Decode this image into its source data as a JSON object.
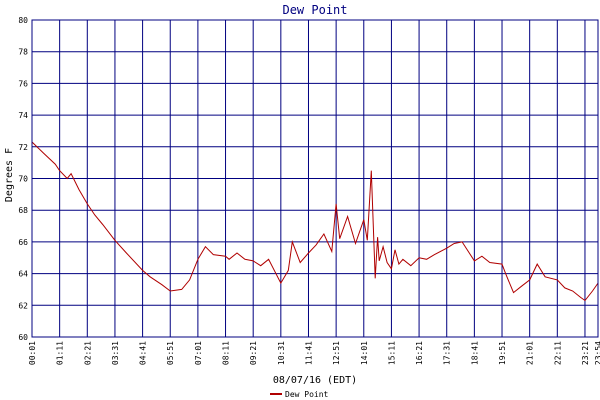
{
  "chart_data": {
    "type": "line",
    "title": "Dew Point",
    "ylabel": "Degrees F",
    "xlabel": "08/07/16 (EDT)",
    "ylim": [
      60,
      80
    ],
    "y_ticks": [
      "60",
      "62",
      "64",
      "66",
      "68",
      "70",
      "72",
      "74",
      "76",
      "78",
      "80"
    ],
    "x_ticks": [
      "00:01",
      "01:11",
      "02:21",
      "03:31",
      "04:41",
      "05:51",
      "07:01",
      "08:11",
      "09:21",
      "10:31",
      "11:41",
      "12:51",
      "14:01",
      "15:11",
      "16:21",
      "17:31",
      "18:41",
      "19:51",
      "21:01",
      "22:11",
      "23:21",
      "23:54"
    ],
    "grid": true,
    "legend_position": "bottom-left",
    "colors": {
      "series": "#b00000",
      "grid": "#000080",
      "frame": "#000080"
    },
    "series": [
      {
        "name": "Dew Point",
        "x": [
          "00:01",
          "00:30",
          "01:00",
          "01:11",
          "01:30",
          "01:40",
          "02:00",
          "02:21",
          "02:40",
          "03:00",
          "03:31",
          "04:00",
          "04:41",
          "05:00",
          "05:30",
          "05:51",
          "06:20",
          "06:40",
          "07:01",
          "07:20",
          "07:40",
          "08:11",
          "08:20",
          "08:40",
          "09:00",
          "09:21",
          "09:40",
          "10:00",
          "10:31",
          "10:50",
          "11:00",
          "11:20",
          "11:41",
          "12:00",
          "12:20",
          "12:40",
          "12:51",
          "13:00",
          "13:20",
          "13:40",
          "14:01",
          "14:10",
          "14:20",
          "14:30",
          "14:36",
          "14:40",
          "14:50",
          "15:00",
          "15:11",
          "15:20",
          "15:30",
          "15:40",
          "16:00",
          "16:21",
          "16:40",
          "17:00",
          "17:31",
          "17:50",
          "18:10",
          "18:41",
          "19:00",
          "19:20",
          "19:51",
          "20:00",
          "20:20",
          "20:40",
          "21:01",
          "21:20",
          "21:40",
          "22:11",
          "22:30",
          "22:50",
          "23:10",
          "23:21",
          "23:40",
          "23:54"
        ],
        "y": [
          72.3,
          71.6,
          70.9,
          70.5,
          70.0,
          70.3,
          69.3,
          68.4,
          67.7,
          67.1,
          66.1,
          65.3,
          64.2,
          63.8,
          63.3,
          62.9,
          63.0,
          63.6,
          64.9,
          65.7,
          65.2,
          65.1,
          64.9,
          65.3,
          64.9,
          64.8,
          64.5,
          64.9,
          63.4,
          64.2,
          66.0,
          64.7,
          65.3,
          65.8,
          66.5,
          65.4,
          68.4,
          66.2,
          67.6,
          65.9,
          67.4,
          66.1,
          70.5,
          63.7,
          66.3,
          64.8,
          65.7,
          64.7,
          64.3,
          65.5,
          64.6,
          64.9,
          64.5,
          65.0,
          64.9,
          65.2,
          65.6,
          65.9,
          66.0,
          64.8,
          65.1,
          64.7,
          64.6,
          64.0,
          62.8,
          63.2,
          63.6,
          64.6,
          63.8,
          63.6,
          63.1,
          62.9,
          62.5,
          62.3,
          62.9,
          63.4
        ]
      }
    ]
  }
}
